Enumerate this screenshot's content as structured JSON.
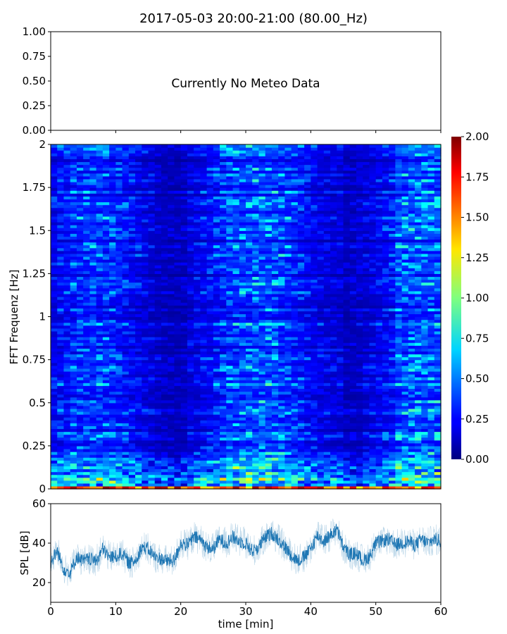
{
  "figure_title": "2017-05-03 20:00-21:00 (80.00_Hz)",
  "chart_data": [
    {
      "type": "line",
      "panel": "meteo",
      "annotation": "Currently No Meteo Data",
      "ylim": [
        0,
        1
      ],
      "yticks": [
        "0.00",
        "0.25",
        "0.50",
        "0.75",
        "1.00"
      ],
      "xlim": [
        0,
        60
      ],
      "series": []
    },
    {
      "type": "heatmap",
      "panel": "spectrogram",
      "ylabel": "FFT Frequenz [Hz]",
      "xlim": [
        0,
        60
      ],
      "ylim": [
        0,
        2
      ],
      "yticks": [
        "0",
        "0.25",
        "0.5",
        "0.75",
        "1",
        "1.25",
        "1.5",
        "1.75",
        "2"
      ],
      "colormap": "jet",
      "color_range": [
        0,
        2
      ],
      "colorbar_ticks": [
        "0.00",
        "0.25",
        "0.50",
        "0.75",
        "1.00",
        "1.25",
        "1.50",
        "1.75",
        "2.00"
      ]
    },
    {
      "type": "line",
      "panel": "spl",
      "xlabel": "time [min]",
      "ylabel": "SPL [dB]",
      "xlim": [
        0,
        60
      ],
      "ylim": [
        10,
        60
      ],
      "xticks": [
        "0",
        "10",
        "20",
        "30",
        "40",
        "50",
        "60"
      ],
      "yticks": [
        "20",
        "40",
        "60"
      ],
      "color": "#1f77b4",
      "x": [
        0,
        1,
        2,
        3,
        4,
        5,
        6,
        7,
        8,
        9,
        10,
        11,
        12,
        13,
        14,
        15,
        16,
        17,
        18,
        19,
        20,
        21,
        22,
        23,
        24,
        25,
        26,
        27,
        28,
        29,
        30,
        31,
        32,
        33,
        34,
        35,
        36,
        37,
        38,
        39,
        40,
        41,
        42,
        43,
        44,
        45,
        46,
        47,
        48,
        49,
        50,
        51,
        52,
        53,
        54,
        55,
        56,
        57,
        58,
        59,
        60
      ],
      "y": [
        30,
        36,
        27,
        25,
        33,
        31,
        32,
        31,
        37,
        33,
        33,
        35,
        30,
        31,
        38,
        37,
        33,
        32,
        31,
        31,
        40,
        39,
        43,
        42,
        38,
        37,
        42,
        40,
        43,
        41,
        40,
        36,
        38,
        43,
        45,
        42,
        38,
        34,
        31,
        33,
        37,
        44,
        41,
        44,
        47,
        38,
        34,
        35,
        31,
        33,
        40,
        41,
        42,
        39,
        40,
        41,
        39,
        42,
        40,
        42,
        41
      ]
    }
  ]
}
